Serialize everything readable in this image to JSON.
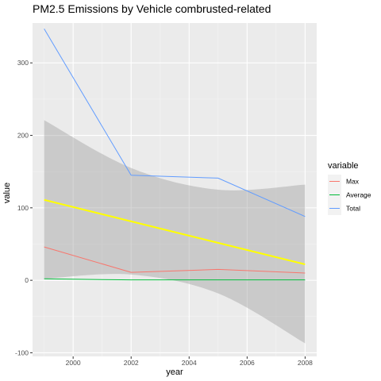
{
  "chart_data": {
    "type": "line",
    "title": "PM2.5 Emissions by Vehicle combrusted-related",
    "xlabel": "year",
    "ylabel": "value",
    "xlim": [
      1998.6,
      2008.4
    ],
    "ylim": [
      -105,
      355
    ],
    "x_ticks": [
      2000,
      2002,
      2004,
      2006,
      2008
    ],
    "y_ticks": [
      -100,
      0,
      100,
      200,
      300
    ],
    "x_tick_labels": [
      "2000",
      "2002",
      "2004",
      "2006",
      "2008"
    ],
    "y_tick_labels": [
      "-100",
      "0",
      "100",
      "200",
      "300"
    ],
    "grid": true,
    "legend": {
      "title": "variable",
      "position": "right",
      "entries": [
        "Max",
        "Average",
        "Total"
      ]
    },
    "series": [
      {
        "name": "Max",
        "color": "#F8766D",
        "x": [
          1999,
          2002,
          2005,
          2008
        ],
        "y": [
          46,
          11,
          15,
          10
        ]
      },
      {
        "name": "Average",
        "color": "#00BA38",
        "x": [
          1999,
          2002,
          2005,
          2008
        ],
        "y": [
          2,
          0.5,
          0.5,
          0.5
        ]
      },
      {
        "name": "Total",
        "color": "#619CFF",
        "x": [
          1999,
          2002,
          2005,
          2008
        ],
        "y": [
          347,
          145,
          141,
          88
        ]
      }
    ],
    "trend": {
      "color": "#FFFF00",
      "x": [
        1999,
        2008
      ],
      "y": [
        111,
        22
      ],
      "band_color": "#999999",
      "band": {
        "x": [
          1999,
          2002,
          2005,
          2008
        ],
        "lower": [
          2,
          8,
          -18,
          -87
        ],
        "upper": [
          221,
          155,
          125,
          132
        ]
      }
    }
  }
}
